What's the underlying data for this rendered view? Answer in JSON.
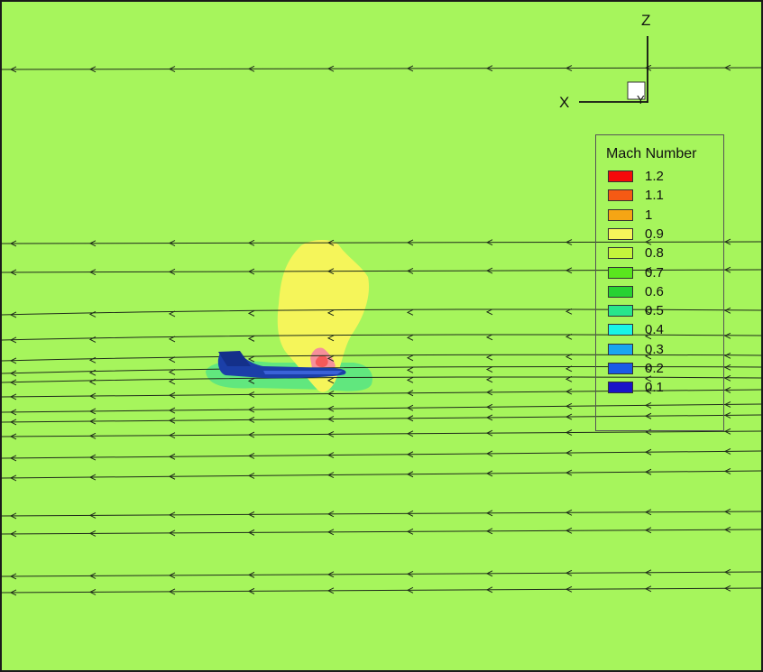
{
  "view": {
    "background_color": "#a6f55c",
    "streamline_color": "#1f2b1a",
    "aircraft_color": "#1b3fa8"
  },
  "axes_triad": {
    "z_label": "Z",
    "x_label": "X",
    "y_label": "Y"
  },
  "legend": {
    "title": "Mach Number",
    "levels": [
      {
        "label": "1.2",
        "color": "#f50a0a"
      },
      {
        "label": "1.1",
        "color": "#f55a14"
      },
      {
        "label": "1",
        "color": "#f5a514"
      },
      {
        "label": "0.9",
        "color": "#f5f55a"
      },
      {
        "label": "0.8",
        "color": "#c4f53c"
      },
      {
        "label": "0.7",
        "color": "#5ae61e"
      },
      {
        "label": "0.6",
        "color": "#28d232"
      },
      {
        "label": "0.5",
        "color": "#28e68c"
      },
      {
        "label": "0.4",
        "color": "#19f5e6"
      },
      {
        "label": "0.3",
        "color": "#19a5f0"
      },
      {
        "label": "0.2",
        "color": "#1a5ae6"
      },
      {
        "label": "0.1",
        "color": "#1a14c8"
      }
    ]
  },
  "contour_colors": {
    "sonic_region": "#f5f55a",
    "hot_spot": "#f5909a",
    "hot_core": "#f55a5a",
    "wake_band": "#5ae682"
  }
}
